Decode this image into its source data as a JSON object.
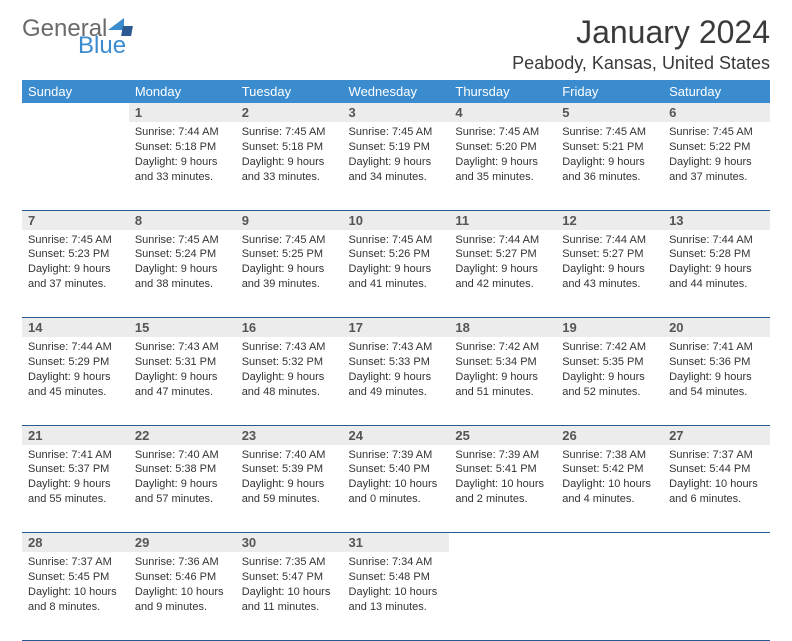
{
  "brand": {
    "part1": "General",
    "part2": "Blue"
  },
  "title": "January 2024",
  "location": "Peabody, Kansas, United States",
  "colors": {
    "header_bg": "#3b8ccf",
    "daynum_bg": "#ececec",
    "row_border": "#2a5a90",
    "text": "#333333",
    "title_text": "#3a3a3a"
  },
  "days_of_week": [
    "Sunday",
    "Monday",
    "Tuesday",
    "Wednesday",
    "Thursday",
    "Friday",
    "Saturday"
  ],
  "weeks": [
    [
      {
        "n": "",
        "sr": "",
        "ss": "",
        "dl": ""
      },
      {
        "n": "1",
        "sr": "7:44 AM",
        "ss": "5:18 PM",
        "dl": "9 hours and 33 minutes."
      },
      {
        "n": "2",
        "sr": "7:45 AM",
        "ss": "5:18 PM",
        "dl": "9 hours and 33 minutes."
      },
      {
        "n": "3",
        "sr": "7:45 AM",
        "ss": "5:19 PM",
        "dl": "9 hours and 34 minutes."
      },
      {
        "n": "4",
        "sr": "7:45 AM",
        "ss": "5:20 PM",
        "dl": "9 hours and 35 minutes."
      },
      {
        "n": "5",
        "sr": "7:45 AM",
        "ss": "5:21 PM",
        "dl": "9 hours and 36 minutes."
      },
      {
        "n": "6",
        "sr": "7:45 AM",
        "ss": "5:22 PM",
        "dl": "9 hours and 37 minutes."
      }
    ],
    [
      {
        "n": "7",
        "sr": "7:45 AM",
        "ss": "5:23 PM",
        "dl": "9 hours and 37 minutes."
      },
      {
        "n": "8",
        "sr": "7:45 AM",
        "ss": "5:24 PM",
        "dl": "9 hours and 38 minutes."
      },
      {
        "n": "9",
        "sr": "7:45 AM",
        "ss": "5:25 PM",
        "dl": "9 hours and 39 minutes."
      },
      {
        "n": "10",
        "sr": "7:45 AM",
        "ss": "5:26 PM",
        "dl": "9 hours and 41 minutes."
      },
      {
        "n": "11",
        "sr": "7:44 AM",
        "ss": "5:27 PM",
        "dl": "9 hours and 42 minutes."
      },
      {
        "n": "12",
        "sr": "7:44 AM",
        "ss": "5:27 PM",
        "dl": "9 hours and 43 minutes."
      },
      {
        "n": "13",
        "sr": "7:44 AM",
        "ss": "5:28 PM",
        "dl": "9 hours and 44 minutes."
      }
    ],
    [
      {
        "n": "14",
        "sr": "7:44 AM",
        "ss": "5:29 PM",
        "dl": "9 hours and 45 minutes."
      },
      {
        "n": "15",
        "sr": "7:43 AM",
        "ss": "5:31 PM",
        "dl": "9 hours and 47 minutes."
      },
      {
        "n": "16",
        "sr": "7:43 AM",
        "ss": "5:32 PM",
        "dl": "9 hours and 48 minutes."
      },
      {
        "n": "17",
        "sr": "7:43 AM",
        "ss": "5:33 PM",
        "dl": "9 hours and 49 minutes."
      },
      {
        "n": "18",
        "sr": "7:42 AM",
        "ss": "5:34 PM",
        "dl": "9 hours and 51 minutes."
      },
      {
        "n": "19",
        "sr": "7:42 AM",
        "ss": "5:35 PM",
        "dl": "9 hours and 52 minutes."
      },
      {
        "n": "20",
        "sr": "7:41 AM",
        "ss": "5:36 PM",
        "dl": "9 hours and 54 minutes."
      }
    ],
    [
      {
        "n": "21",
        "sr": "7:41 AM",
        "ss": "5:37 PM",
        "dl": "9 hours and 55 minutes."
      },
      {
        "n": "22",
        "sr": "7:40 AM",
        "ss": "5:38 PM",
        "dl": "9 hours and 57 minutes."
      },
      {
        "n": "23",
        "sr": "7:40 AM",
        "ss": "5:39 PM",
        "dl": "9 hours and 59 minutes."
      },
      {
        "n": "24",
        "sr": "7:39 AM",
        "ss": "5:40 PM",
        "dl": "10 hours and 0 minutes."
      },
      {
        "n": "25",
        "sr": "7:39 AM",
        "ss": "5:41 PM",
        "dl": "10 hours and 2 minutes."
      },
      {
        "n": "26",
        "sr": "7:38 AM",
        "ss": "5:42 PM",
        "dl": "10 hours and 4 minutes."
      },
      {
        "n": "27",
        "sr": "7:37 AM",
        "ss": "5:44 PM",
        "dl": "10 hours and 6 minutes."
      }
    ],
    [
      {
        "n": "28",
        "sr": "7:37 AM",
        "ss": "5:45 PM",
        "dl": "10 hours and 8 minutes."
      },
      {
        "n": "29",
        "sr": "7:36 AM",
        "ss": "5:46 PM",
        "dl": "10 hours and 9 minutes."
      },
      {
        "n": "30",
        "sr": "7:35 AM",
        "ss": "5:47 PM",
        "dl": "10 hours and 11 minutes."
      },
      {
        "n": "31",
        "sr": "7:34 AM",
        "ss": "5:48 PM",
        "dl": "10 hours and 13 minutes."
      },
      {
        "n": "",
        "sr": "",
        "ss": "",
        "dl": ""
      },
      {
        "n": "",
        "sr": "",
        "ss": "",
        "dl": ""
      },
      {
        "n": "",
        "sr": "",
        "ss": "",
        "dl": ""
      }
    ]
  ],
  "labels": {
    "sunrise": "Sunrise:",
    "sunset": "Sunset:",
    "daylight": "Daylight:"
  }
}
